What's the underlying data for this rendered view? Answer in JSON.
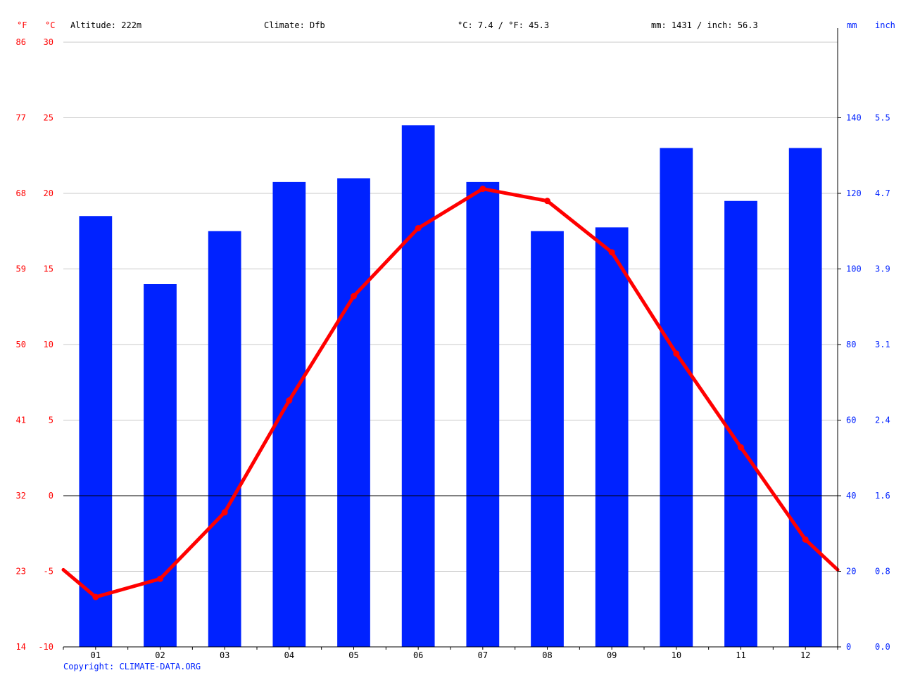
{
  "header": {
    "f_unit": "°F",
    "c_unit": "°C",
    "altitude": "Altitude: 222m",
    "climate": "Climate: Dfb",
    "avg_temp": "°C: 7.4 / °F: 45.3",
    "precip_total": "mm: 1431 / inch: 56.3",
    "mm_unit": "mm",
    "inch_unit": "inch"
  },
  "footer": {
    "copyright": "Copyright: CLIMATE-DATA.ORG"
  },
  "colors": {
    "temperature": "#ff0000",
    "precipitation": "#0022ff",
    "grid": "#c8c8c8",
    "text": "#000000"
  },
  "chart_data": {
    "type": "bar",
    "categories": [
      "01",
      "02",
      "03",
      "04",
      "05",
      "06",
      "07",
      "08",
      "09",
      "10",
      "11",
      "12"
    ],
    "series": [
      {
        "values": [
          114,
          96,
          110,
          123,
          124,
          138,
          123,
          110,
          111,
          132,
          118,
          132
        ],
        "chart_type": "bar",
        "axis": "right"
      },
      {
        "values": [
          -6.7,
          -5.5,
          -1.1,
          6.3,
          13.2,
          17.7,
          20.3,
          19.5,
          16.1,
          9.4,
          3.2,
          -2.9
        ],
        "chart_type": "line",
        "axis": "left"
      }
    ],
    "line_edge_values": {
      "start": -4.9,
      "end": -4.9
    },
    "left_axis_c": {
      "ylim": [
        -10,
        30
      ],
      "ticks": [
        "-10",
        "-5",
        "0",
        "5",
        "10",
        "15",
        "20",
        "25",
        "30"
      ]
    },
    "left_axis_f": {
      "ticks": [
        "14",
        "23",
        "32",
        "41",
        "50",
        "59",
        "68",
        "77",
        "86"
      ]
    },
    "right_axis_mm": {
      "ylim": [
        0,
        160
      ],
      "ticks": [
        "0",
        "20",
        "40",
        "60",
        "80",
        "100",
        "120",
        "140"
      ]
    },
    "right_axis_inch": {
      "ticks": [
        "0.0",
        "0.8",
        "1.6",
        "2.4",
        "3.1",
        "3.9",
        "4.7",
        "5.5"
      ]
    },
    "grid": true
  }
}
